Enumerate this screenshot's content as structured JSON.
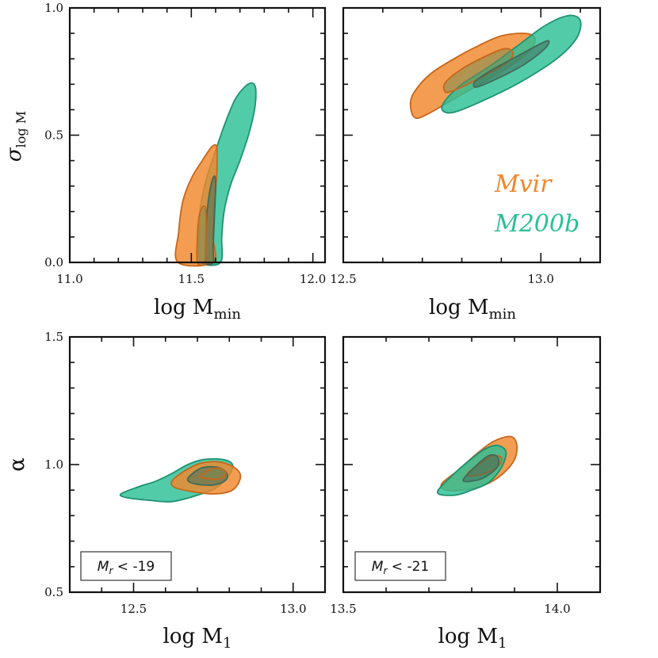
{
  "colors": {
    "mvir": "#F0872C",
    "m200b": "#2CBF96",
    "mvir_dark": "#C8661A",
    "m200b_dark": "#1E9273",
    "overlap": "#7A8A52",
    "overlap_dark": "#3F6B5A"
  },
  "legend": {
    "mvir_label": "Mvir",
    "m200b_label": "M200b"
  },
  "chart_data": [
    {
      "type": "contour",
      "panel": "top-left",
      "xlabel": "log M_min",
      "ylabel": "σ_log M",
      "xlim": [
        11.0,
        12.05
      ],
      "ylim": [
        0.0,
        1.0
      ],
      "xticks": [
        11.0,
        11.5,
        12.0
      ],
      "xtick_labels": [
        "11.0",
        "11.5",
        "12.0"
      ],
      "yticks": [
        0.0,
        0.5,
        1.0
      ],
      "ytick_labels": [
        "0.0",
        "0.5",
        "1.0"
      ],
      "series": [
        {
          "name": "M200b",
          "level": "outer",
          "points": [
            [
              11.54,
              0.0
            ],
            [
              11.53,
              0.08
            ],
            [
              11.535,
              0.2
            ],
            [
              11.56,
              0.32
            ],
            [
              11.6,
              0.44
            ],
            [
              11.64,
              0.55
            ],
            [
              11.68,
              0.64
            ],
            [
              11.72,
              0.69
            ],
            [
              11.75,
              0.705
            ],
            [
              11.765,
              0.68
            ],
            [
              11.76,
              0.6
            ],
            [
              11.735,
              0.5
            ],
            [
              11.7,
              0.4
            ],
            [
              11.66,
              0.3
            ],
            [
              11.635,
              0.2
            ],
            [
              11.625,
              0.1
            ],
            [
              11.62,
              0.0
            ]
          ]
        },
        {
          "name": "Mvir",
          "level": "outer",
          "points": [
            [
              11.445,
              0.0
            ],
            [
              11.448,
              0.12
            ],
            [
              11.465,
              0.24
            ],
            [
              11.5,
              0.33
            ],
            [
              11.545,
              0.4
            ],
            [
              11.585,
              0.455
            ],
            [
              11.605,
              0.45
            ],
            [
              11.605,
              0.35
            ],
            [
              11.595,
              0.22
            ],
            [
              11.59,
              0.1
            ],
            [
              11.59,
              0.0
            ]
          ]
        },
        {
          "name": "M200b",
          "level": "inner",
          "points": [
            [
              11.56,
              0.0
            ],
            [
              11.56,
              0.1
            ],
            [
              11.565,
              0.2
            ],
            [
              11.58,
              0.3
            ],
            [
              11.595,
              0.34
            ],
            [
              11.6,
              0.3
            ],
            [
              11.595,
              0.18
            ],
            [
              11.59,
              0.06
            ],
            [
              11.59,
              0.0
            ]
          ]
        },
        {
          "name": "Mvir",
          "level": "inner",
          "points": [
            [
              11.525,
              0.0
            ],
            [
              11.525,
              0.1
            ],
            [
              11.532,
              0.18
            ],
            [
              11.548,
              0.22
            ],
            [
              11.56,
              0.2
            ],
            [
              11.56,
              0.1
            ],
            [
              11.555,
              0.0
            ]
          ]
        }
      ]
    },
    {
      "type": "contour",
      "panel": "top-right",
      "xlabel": "log M_min",
      "ylabel": "",
      "xlim": [
        12.5,
        13.15
      ],
      "ylim": [
        0.0,
        1.0
      ],
      "xticks": [
        12.5,
        13.0
      ],
      "xtick_labels": [
        "12.5",
        "13.0"
      ],
      "yticks": [
        0.0,
        0.5,
        1.0
      ],
      "ytick_labels": [
        "",
        "",
        ""
      ],
      "series": [
        {
          "name": "Mvir",
          "level": "outer",
          "points": [
            [
              12.71,
              0.58
            ],
            [
              12.8,
              0.66
            ],
            [
              12.9,
              0.75
            ],
            [
              12.97,
              0.83
            ],
            [
              12.985,
              0.88
            ],
            [
              12.96,
              0.9
            ],
            [
              12.9,
              0.89
            ],
            [
              12.84,
              0.85
            ],
            [
              12.78,
              0.8
            ],
            [
              12.72,
              0.74
            ],
            [
              12.68,
              0.67
            ],
            [
              12.67,
              0.62
            ],
            [
              12.68,
              0.57
            ]
          ]
        },
        {
          "name": "M200b",
          "level": "outer",
          "points": [
            [
              12.78,
              0.59
            ],
            [
              12.86,
              0.64
            ],
            [
              12.95,
              0.71
            ],
            [
              13.04,
              0.8
            ],
            [
              13.09,
              0.88
            ],
            [
              13.1,
              0.95
            ],
            [
              13.07,
              0.97
            ],
            [
              13.01,
              0.93
            ],
            [
              12.94,
              0.85
            ],
            [
              12.87,
              0.77
            ],
            [
              12.8,
              0.7
            ],
            [
              12.76,
              0.64
            ],
            [
              12.75,
              0.6
            ]
          ]
        },
        {
          "name": "Mvir",
          "level": "inner",
          "points": [
            [
              12.77,
              0.67
            ],
            [
              12.84,
              0.72
            ],
            [
              12.91,
              0.78
            ],
            [
              12.93,
              0.82
            ],
            [
              12.91,
              0.84
            ],
            [
              12.86,
              0.81
            ],
            [
              12.8,
              0.76
            ],
            [
              12.76,
              0.71
            ],
            [
              12.755,
              0.68
            ]
          ]
        },
        {
          "name": "M200b",
          "level": "inner",
          "points": [
            [
              12.84,
              0.69
            ],
            [
              12.9,
              0.73
            ],
            [
              12.96,
              0.78
            ],
            [
              13.01,
              0.84
            ],
            [
              13.02,
              0.87
            ],
            [
              13.0,
              0.86
            ],
            [
              12.94,
              0.81
            ],
            [
              12.88,
              0.76
            ],
            [
              12.84,
              0.72
            ],
            [
              12.83,
              0.7
            ]
          ]
        }
      ]
    },
    {
      "type": "contour",
      "panel": "bottom-left",
      "xlabel": "log M_1",
      "ylabel": "α",
      "xlim": [
        12.3,
        13.1
      ],
      "ylim": [
        0.5,
        1.5
      ],
      "xticks": [
        12.5,
        13.0
      ],
      "xtick_labels": [
        "12.5",
        "13.0"
      ],
      "yticks": [
        0.5,
        1.0,
        1.5
      ],
      "ytick_labels": [
        "0.5",
        "1.0",
        "1.5"
      ],
      "annotation": "M_r < -19",
      "series": [
        {
          "name": "M200b",
          "level": "outer",
          "points": [
            [
              12.46,
              0.885
            ],
            [
              12.52,
              0.915
            ],
            [
              12.57,
              0.935
            ],
            [
              12.62,
              0.965
            ],
            [
              12.67,
              1.0
            ],
            [
              12.72,
              1.02
            ],
            [
              12.78,
              1.02
            ],
            [
              12.81,
              1.0
            ],
            [
              12.8,
              0.96
            ],
            [
              12.76,
              0.91
            ],
            [
              12.7,
              0.88
            ],
            [
              12.62,
              0.855
            ],
            [
              12.55,
              0.86
            ],
            [
              12.48,
              0.87
            ]
          ]
        },
        {
          "name": "Mvir",
          "level": "outer",
          "points": [
            [
              12.62,
              0.935
            ],
            [
              12.66,
              0.975
            ],
            [
              12.71,
              1.005
            ],
            [
              12.77,
              1.01
            ],
            [
              12.82,
              0.985
            ],
            [
              12.835,
              0.95
            ],
            [
              12.81,
              0.9
            ],
            [
              12.75,
              0.885
            ],
            [
              12.68,
              0.895
            ],
            [
              12.63,
              0.91
            ]
          ]
        },
        {
          "name": "M200b",
          "level": "inner",
          "points": [
            [
              12.67,
              0.945
            ],
            [
              12.71,
              0.985
            ],
            [
              12.76,
              0.99
            ],
            [
              12.79,
              0.97
            ],
            [
              12.79,
              0.94
            ],
            [
              12.75,
              0.92
            ],
            [
              12.69,
              0.925
            ]
          ]
        },
        {
          "name": "Mvir",
          "level": "inner",
          "points": [
            [
              12.71,
              0.955
            ],
            [
              12.74,
              0.98
            ],
            [
              12.77,
              0.985
            ],
            [
              12.79,
              0.965
            ],
            [
              12.77,
              0.945
            ],
            [
              12.73,
              0.945
            ]
          ]
        }
      ]
    },
    {
      "type": "contour",
      "panel": "bottom-right",
      "xlabel": "log M_1",
      "ylabel": "",
      "xlim": [
        13.5,
        14.1
      ],
      "ylim": [
        0.5,
        1.5
      ],
      "xticks": [
        13.5,
        14.0
      ],
      "xtick_labels": [
        "13.5",
        "14.0"
      ],
      "yticks": [
        0.5,
        1.0,
        1.5
      ],
      "ytick_labels": [
        "",
        "",
        ""
      ],
      "annotation": "M_r < -21",
      "series": [
        {
          "name": "Mvir",
          "level": "outer",
          "points": [
            [
              13.73,
              0.925
            ],
            [
              13.77,
              0.98
            ],
            [
              13.81,
              1.04
            ],
            [
              13.85,
              1.09
            ],
            [
              13.89,
              1.11
            ],
            [
              13.905,
              1.08
            ],
            [
              13.9,
              1.02
            ],
            [
              13.87,
              0.96
            ],
            [
              13.83,
              0.92
            ],
            [
              13.78,
              0.9
            ],
            [
              13.74,
              0.9
            ]
          ]
        },
        {
          "name": "M200b",
          "level": "outer",
          "points": [
            [
              13.72,
              0.89
            ],
            [
              13.75,
              0.95
            ],
            [
              13.79,
              1.01
            ],
            [
              13.83,
              1.06
            ],
            [
              13.86,
              1.075
            ],
            [
              13.88,
              1.05
            ],
            [
              13.87,
              0.99
            ],
            [
              13.84,
              0.93
            ],
            [
              13.8,
              0.9
            ],
            [
              13.76,
              0.88
            ]
          ]
        },
        {
          "name": "Mvir",
          "level": "inner",
          "points": [
            [
              13.79,
              0.965
            ],
            [
              13.82,
              1.005
            ],
            [
              13.85,
              1.035
            ],
            [
              13.87,
              1.025
            ],
            [
              13.86,
              0.99
            ],
            [
              13.83,
              0.965
            ],
            [
              13.8,
              0.955
            ]
          ]
        },
        {
          "name": "M200b",
          "level": "inner",
          "points": [
            [
              13.78,
              0.94
            ],
            [
              13.81,
              0.995
            ],
            [
              13.84,
              1.035
            ],
            [
              13.86,
              1.03
            ],
            [
              13.86,
              0.99
            ],
            [
              13.83,
              0.95
            ],
            [
              13.8,
              0.935
            ]
          ]
        }
      ]
    }
  ]
}
